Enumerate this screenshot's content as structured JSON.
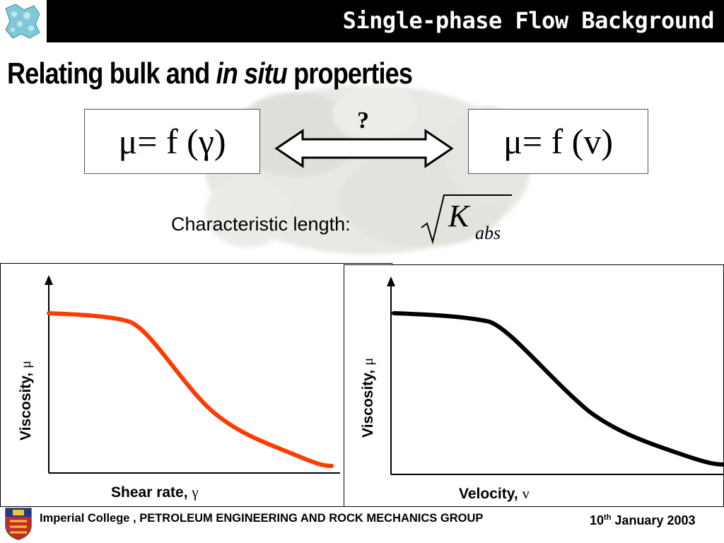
{
  "header": {
    "title": "Single-phase Flow Background",
    "logo_icon": "rock-pore-network-icon"
  },
  "slide": {
    "heading_part1": "Relating bulk and ",
    "heading_italic": "in situ",
    "heading_part2": " properties",
    "left_formula": "μ= f (γ)",
    "right_formula": "μ= f (v)",
    "question_mark": "?",
    "characteristic_length_label": "Characteristic length:",
    "sqrt_symbol": "K",
    "sqrt_subscript": "abs"
  },
  "charts": {
    "left": {
      "ylabel_text": "Viscosity, ",
      "ylabel_symbol": "μ",
      "xlabel_text": "Shear rate, ",
      "xlabel_symbol": "γ",
      "line_color": "#ff3c00"
    },
    "right": {
      "ylabel_text": "Viscosity, ",
      "ylabel_symbol": "μ",
      "xlabel_text": "Velocity, ",
      "xlabel_symbol": "v",
      "line_color": "#000000"
    }
  },
  "footer": {
    "organization": "Imperial College , PETROLEUM ENGINEERING AND ROCK MECHANICS GROUP",
    "date_day": "10",
    "date_suffix": "th",
    "date_rest": " January 2003",
    "crest_icon": "imperial-college-crest-icon"
  }
}
